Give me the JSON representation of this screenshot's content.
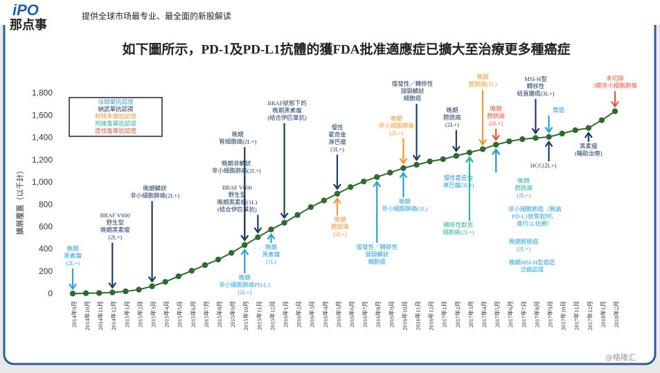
{
  "header": {
    "logo_top": "iPO",
    "logo_bottom": "那点事",
    "tagline": "提供全球市场最专业、最全面的新股解读"
  },
  "watermark": "@格隆汇",
  "chart_data": {
    "type": "line",
    "title": "如下圖所示，PD-1及PD-L1抗體的獲FDA批准適應症已擴大至治療更多種癌症",
    "y_label": "擴展覆蓋（以千計）",
    "categories": [
      "2014年9月",
      "2014年10月",
      "2014年11月",
      "2014年12月",
      "2015年1月",
      "2015年2月",
      "2015年3月",
      "2015年4月",
      "2015年5月",
      "2015年6月",
      "2015年7月",
      "2015年8月",
      "2015年9月",
      "2015年10月",
      "2015年11月",
      "2015年12月",
      "2016年1月",
      "2016年2月",
      "2016年3月",
      "2016年4月",
      "2016年5月",
      "2016年6月",
      "2016年7月",
      "2016年8月",
      "2016年9月",
      "2016年10月",
      "2016年11月",
      "2016年12月",
      "2017年1月",
      "2017年2月",
      "2017年3月",
      "2017年4月",
      "2017年5月",
      "2017年6月",
      "2017年7月",
      "2017年8月",
      "2017年9月",
      "2017年10月",
      "2017年11月",
      "2017年12月",
      "2018年1月",
      "2018年2月"
    ],
    "values": [
      5,
      8,
      10,
      15,
      25,
      40,
      70,
      110,
      160,
      210,
      260,
      310,
      370,
      440,
      510,
      580,
      640,
      710,
      780,
      840,
      900,
      960,
      1010,
      1050,
      1090,
      1130,
      1160,
      1190,
      1210,
      1240,
      1270,
      1300,
      1340,
      1370,
      1390,
      1400,
      1410,
      1440,
      1470,
      1490,
      1560,
      1640
    ],
    "color": "#2e6b2e",
    "ylim": [
      0,
      1800
    ],
    "yticks": [
      0,
      200,
      400,
      600,
      800,
      {
        "value": 1000,
        "label": "1,000"
      },
      {
        "value": 1200,
        "label": "1,200"
      },
      {
        "value": 1400,
        "label": "1,400"
      },
      {
        "value": 1600,
        "label": "1,600"
      },
      {
        "value": 1800,
        "label": "1,800"
      }
    ],
    "legend": [
      {
        "name": "派姆單抗認證",
        "color": "#2aa0d8"
      },
      {
        "name": "納武單抗認證",
        "color": "#1f3a63"
      },
      {
        "name": "阿特朱單抗認證",
        "color": "#f0972f"
      },
      {
        "name": "阿維魯單抗認證",
        "color": "#36b09c"
      },
      {
        "name": "度伐魯單抗認證",
        "color": "#e8543a"
      }
    ],
    "annotations": [
      {
        "x": "2014年9月",
        "color": "#2aa0d8",
        "lines": [
          "晚期",
          "黑素瘤",
          "(2L+)"
        ]
      },
      {
        "x": "2014年12月",
        "color": "#1f3a63",
        "lines": [
          "BRAF V600",
          "野生型",
          "晚期黑素瘤",
          "(2L+)"
        ]
      },
      {
        "x": "2015年3月",
        "color": "#1f3a63",
        "lines": [
          "晚期鱗狀",
          "非小細胞肺癌(2L+)"
        ]
      },
      {
        "x": "2015年10月",
        "color": "#2aa0d8",
        "lines": [
          "晚期",
          "非小細胞肺癌PD-L1",
          "(2L+)"
        ]
      },
      {
        "x": "2015年10月",
        "color": "#1f3a63",
        "lines": [
          "晚期",
          "腎細胞癌(2L+)"
        ]
      },
      {
        "x": "2015年10月",
        "color": "#1f3a63",
        "lines": [
          "晚期非鱗狀",
          "非小細胞肺癌(2L+)"
        ]
      },
      {
        "x": "2015年11月",
        "color": "#1f3a63",
        "lines": [
          "BRAF V600",
          "野生型",
          "晚期黑素瘤(1L)",
          "(結合伊匹單抗)"
        ]
      },
      {
        "x": "2015年12月",
        "color": "#2aa0d8",
        "lines": [
          "晚期",
          "黑素瘤",
          "(1L)"
        ]
      },
      {
        "x": "2016年1月",
        "color": "#1f3a63",
        "lines": [
          "BRAF狀態下的",
          "晚期黑素瘤",
          "(結合伊匹單抗)"
        ]
      },
      {
        "x": "2016年5月",
        "color": "#f0972f",
        "lines": [
          "晚期",
          "膀胱癌",
          "(2L+)"
        ]
      },
      {
        "x": "2016年5月",
        "color": "#1f3a63",
        "lines": [
          "慢性",
          "霍奇金",
          "淋巴瘤",
          "(3L+)"
        ]
      },
      {
        "x": "2016年8月",
        "color": "#2aa0d8",
        "lines": [
          "復發性／轉移性",
          "頭頸鱗狀",
          "細胞癌"
        ]
      },
      {
        "x": "2016年10月",
        "color": "#f0972f",
        "lines": [
          "晚期",
          "非小細胞肺癌",
          "(2L+)"
        ]
      },
      {
        "x": "2016年10月",
        "color": "#2aa0d8",
        "lines": [
          "晚期",
          "非小細胞肺癌(1L)"
        ]
      },
      {
        "x": "2016年11月",
        "color": "#1f3a63",
        "lines": [
          "復發性／轉移性",
          "頭頸鱗狀",
          "細胞癌"
        ]
      },
      {
        "x": "2017年2月",
        "color": "#1f3a63",
        "lines": [
          "晚期",
          "膀胱癌",
          "(2L+)"
        ]
      },
      {
        "x": "2017年3月",
        "color": "#2aa0d8",
        "lines": [
          "慢性霍奇金",
          "淋巴瘤(3L+)"
        ]
      },
      {
        "x": "2017年3月",
        "color": "#36b09c",
        "lines": [
          "轉移性默克",
          "細胞癌(2L+)"
        ]
      },
      {
        "x": "2017年4月",
        "color": "#f0972f",
        "lines": [
          "晚期",
          "膀胱癌(1L)"
        ]
      },
      {
        "x": "2017年5月",
        "color": "#e8543a",
        "lines": [
          "晚期",
          "膀胱癌",
          "(2L+)"
        ]
      },
      {
        "x": "2017年5月",
        "color": "#36b09c",
        "lines": [
          "晚期",
          "膀胱癌",
          "(2L+)"
        ]
      },
      {
        "x": "2017年5月",
        "color": "#2aa0d8",
        "lines": [
          "非小細胞肺癌（無論",
          "PD-L1狀態如何，",
          "進行1L化療）"
        ]
      },
      {
        "x": "2017年5月",
        "color": "#2aa0d8",
        "lines": [
          "晚期膀胱癌",
          "(2L+)"
        ]
      },
      {
        "x": "2017年5月",
        "color": "#2aa0d8",
        "lines": [
          "晚期MSI-H型癌症",
          "泛癌認證"
        ]
      },
      {
        "x": "2017年8月",
        "color": "#1f3a63",
        "lines": [
          "MSI-H型",
          "轉移性",
          "結直腸癌(3L+)"
        ]
      },
      {
        "x": "2017年9月",
        "color": "#2aa0d8",
        "lines": [
          "胃癌"
        ]
      },
      {
        "x": "2017年9月",
        "color": "#1f3a63",
        "lines": [
          "HCC(2L+)"
        ]
      },
      {
        "x": "2017年12月",
        "color": "#1f3a63",
        "lines": [
          "黑素瘤",
          "(輔助治療)"
        ]
      },
      {
        "x": "2018年2月",
        "color": "#e8543a",
        "lines": [
          "未切除",
          "3期非小細胞肺癌"
        ]
      }
    ]
  }
}
